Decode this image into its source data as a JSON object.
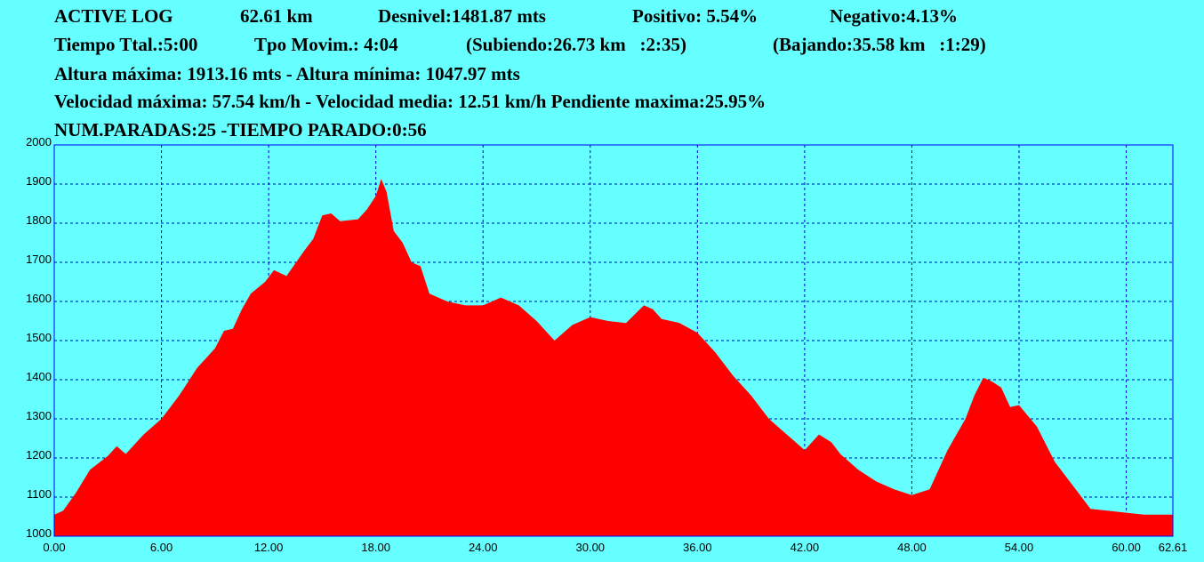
{
  "header": {
    "line1": {
      "name": "ACTIVE LOG",
      "distance": "62.61 km",
      "desnivel": "Desnivel:1481.87 mts",
      "positivo": "Positivo: 5.54%",
      "negativo": "Negativo:4.13%"
    },
    "line2": {
      "tiempo_total": "Tiempo Ttal.:5:00",
      "tiempo_movimiento": "Tpo Movim.: 4:04",
      "subiendo": "(Subiendo:26.73 km   :2:35)",
      "bajando": "(Bajando:35.58 km   :1:29)"
    },
    "line3": "Altura máxima: 1913.16 mts - Altura mínima: 1047.97 mts",
    "line4": "Velocidad máxima: 57.54 km/h - Velocidad media: 12.51 km/h Pendiente maxima:25.95%",
    "line5": "NUM.PARADAS:25 -TIEMPO PARADO:0:56"
  },
  "colors": {
    "background": "#66FFFF",
    "fill": "#FF0000",
    "grid": "#0000CC",
    "border": "#0000FF"
  },
  "chart_data": {
    "type": "area",
    "title": "",
    "xlabel": "",
    "ylabel": "",
    "xlim": [
      0,
      62.61
    ],
    "ylim": [
      1000,
      2000
    ],
    "grid": true,
    "x_ticks": [
      0,
      6,
      12,
      18,
      24,
      30,
      36,
      42,
      48,
      54,
      60,
      62.61
    ],
    "x_tick_labels": [
      "0.00",
      "6.00",
      "12.00",
      "18.00",
      "24.00",
      "30.00",
      "36.00",
      "42.00",
      "48.00",
      "54.00",
      "60.00",
      "62.61"
    ],
    "y_ticks": [
      1000,
      1100,
      1200,
      1300,
      1400,
      1500,
      1600,
      1700,
      1800,
      1900,
      2000
    ],
    "y_tick_labels": [
      "1000",
      "1100",
      "1200",
      "1300",
      "1400",
      "1500",
      "1600",
      "1700",
      "1800",
      "1900",
      "2000"
    ],
    "series": [
      {
        "x": [
          0,
          0.5,
          1.2,
          2.0,
          3.0,
          3.5,
          4.0,
          5.0,
          6.0,
          7.0,
          8.0,
          9.0,
          9.5,
          10.0,
          10.5,
          11.0,
          11.8,
          12.3,
          13.0,
          14.0,
          14.5,
          15.0,
          15.5,
          16.0,
          17.0,
          17.5,
          18.0,
          18.3,
          18.6,
          19.0,
          19.5,
          20.0,
          20.5,
          21.0,
          22.0,
          23.0,
          24.0,
          25.0,
          26.0,
          27.0,
          28.0,
          29.0,
          30.0,
          31.0,
          32.0,
          33.0,
          33.5,
          34.0,
          35.0,
          36.0,
          37.0,
          38.0,
          39.0,
          40.0,
          41.0,
          42.0,
          42.8,
          43.5,
          44.0,
          45.0,
          46.0,
          47.0,
          48.0,
          49.0,
          50.0,
          51.0,
          51.5,
          52.0,
          52.5,
          53.0,
          53.5,
          54.0,
          55.0,
          56.0,
          57.0,
          58.0,
          59.0,
          60.0,
          61.0,
          62.61
        ],
        "values": [
          1055,
          1065,
          1110,
          1170,
          1205,
          1230,
          1210,
          1260,
          1300,
          1360,
          1430,
          1480,
          1525,
          1530,
          1580,
          1620,
          1650,
          1680,
          1665,
          1730,
          1760,
          1820,
          1825,
          1805,
          1810,
          1835,
          1870,
          1913,
          1880,
          1780,
          1750,
          1700,
          1690,
          1620,
          1600,
          1590,
          1590,
          1610,
          1590,
          1550,
          1500,
          1540,
          1560,
          1550,
          1545,
          1590,
          1580,
          1555,
          1545,
          1520,
          1470,
          1410,
          1360,
          1300,
          1260,
          1220,
          1260,
          1240,
          1210,
          1170,
          1140,
          1120,
          1105,
          1120,
          1220,
          1300,
          1360,
          1405,
          1395,
          1380,
          1330,
          1335,
          1280,
          1190,
          1130,
          1070,
          1065,
          1060,
          1055,
          1055
        ]
      }
    ]
  }
}
